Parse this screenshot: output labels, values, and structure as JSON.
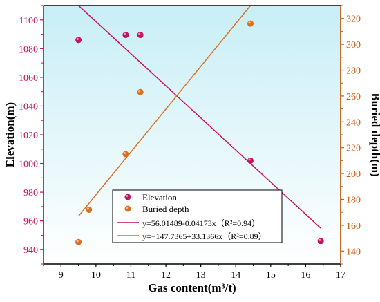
{
  "chart_data": {
    "type": "scatter",
    "title": "",
    "xlabel": "Gas content(m³/t)",
    "ylabel_left": "Elevation(m)",
    "ylabel_right": "Buried depth(m)",
    "xlim": [
      8.5,
      17
    ],
    "ylim_left": [
      930,
      1110
    ],
    "ylim_right": [
      130,
      330
    ],
    "x_ticks": [
      9,
      10,
      11,
      12,
      13,
      14,
      15,
      16,
      17
    ],
    "y_left_ticks": [
      940,
      960,
      980,
      1000,
      1020,
      1040,
      1060,
      1080,
      1100
    ],
    "y_right_ticks": [
      140,
      160,
      180,
      200,
      220,
      240,
      260,
      280,
      300,
      320
    ],
    "colors": {
      "elevation": "#c4125e",
      "buried_depth": "#d9701f",
      "left_axis": "#c4125e",
      "right_axis": "#c85a10",
      "plot_bg_top": "#c8eef6",
      "plot_bg_bottom": "#ffffff"
    },
    "series": [
      {
        "name": "Elevation",
        "axis": "left",
        "x": [
          9.5,
          10.85,
          11.27,
          14.42,
          16.43
        ],
        "y": [
          1086,
          1089.5,
          1089.5,
          1002,
          946
        ]
      },
      {
        "name": "Buried depth",
        "axis": "right",
        "x": [
          9.5,
          9.8,
          10.85,
          11.27,
          14.42
        ],
        "y": [
          147,
          172,
          215,
          263,
          316
        ]
      }
    ],
    "fits": [
      {
        "series": "Elevation",
        "axis": "left",
        "x": [
          9.5,
          16.43
        ],
        "y": [
          1110,
          955
        ],
        "label": "y=56.01489-0.04173x（R²=0.94）"
      },
      {
        "series": "Buried depth",
        "axis": "right",
        "x": [
          9.5,
          14.42
        ],
        "y": [
          167,
          330
        ],
        "label": "y=−147.7365+33.1366x（R²=0.89）"
      }
    ],
    "legend": {
      "placement": "bottom-center",
      "entries": [
        "Elevation",
        "Buried depth",
        "y=56.01489-0.04173x（R²=0.94）",
        "y=−147.7365+33.1366x（R²=0.89）"
      ]
    },
    "grid": false
  }
}
